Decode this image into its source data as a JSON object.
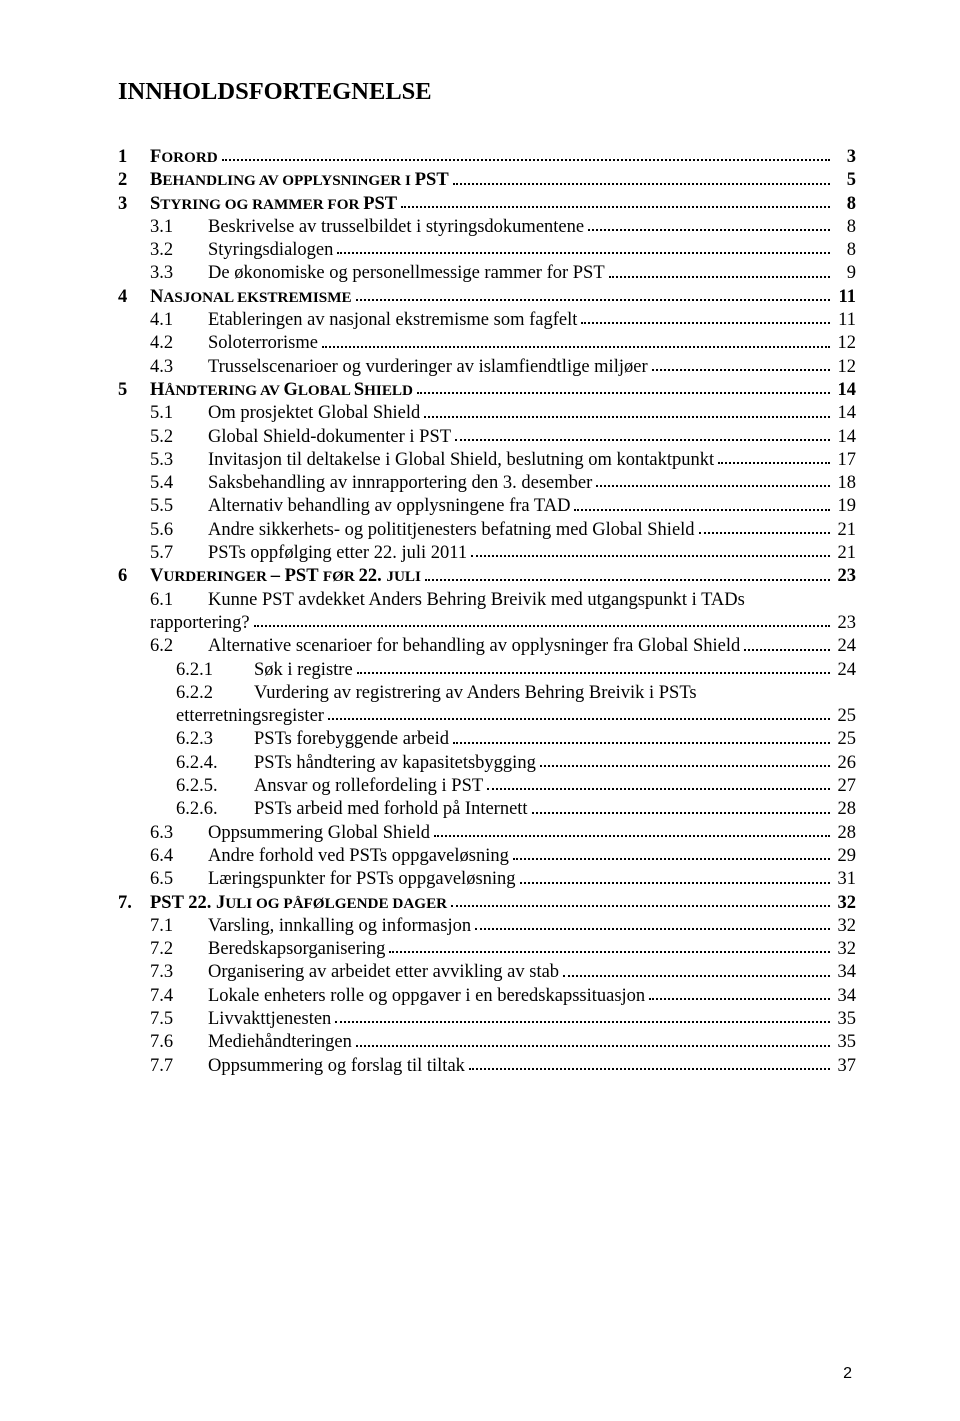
{
  "title": "INNHOLDSFORTEGNELSE",
  "page_number": "2",
  "colors": {
    "text": "#000000",
    "background": "#ffffff"
  },
  "typography": {
    "title_fontsize": 24.5,
    "body_fontsize": 18.5,
    "pagenum_fontsize": 16,
    "line_height": 1.26
  },
  "entries": [
    {
      "level": 1,
      "num": "1",
      "label_pre": "F",
      "label_sc": "ORORD",
      "label_post": "",
      "page": "3"
    },
    {
      "level": 1,
      "num": "2",
      "label_pre": "B",
      "label_sc": "EHANDLING AV OPPLYSNINGER I ",
      "label_post": "PST",
      "page": "5"
    },
    {
      "level": 1,
      "num": "3",
      "label_pre": "S",
      "label_sc": "TYRING OG RAMMER FOR ",
      "label_post": "PST",
      "page": "8"
    },
    {
      "level": 2,
      "num": "3.1",
      "label": "Beskrivelse av trusselbildet i styringsdokumentene",
      "page": "8"
    },
    {
      "level": 2,
      "num": "3.2",
      "label": "Styringsdialogen",
      "page": "8"
    },
    {
      "level": 2,
      "num": "3.3",
      "label": "De økonomiske og personellmessige rammer for PST",
      "page": "9"
    },
    {
      "level": 1,
      "num": "4",
      "label_pre": "N",
      "label_sc": "ASJONAL EKSTREMISME",
      "label_post": "",
      "page": "11"
    },
    {
      "level": 2,
      "num": "4.1",
      "label": "Etableringen av nasjonal ekstremisme som fagfelt",
      "page": "11"
    },
    {
      "level": 2,
      "num": "4.2",
      "label": "Soloterrorisme",
      "page": "12"
    },
    {
      "level": 2,
      "num": "4.3",
      "label": "Trusselscenarioer og vurderinger av islamfiendtlige miljøer",
      "page": "12"
    },
    {
      "level": 1,
      "num": "5",
      "label_pre": "H",
      "label_sc": "ÅNDTERING AV ",
      "label_post": "G",
      "label_sc2": "LOBAL ",
      "label_post2": "S",
      "label_sc3": "HIELD",
      "page": "14"
    },
    {
      "level": 2,
      "num": "5.1",
      "label": "Om prosjektet Global Shield",
      "page": "14"
    },
    {
      "level": 2,
      "num": "5.2",
      "label": "Global Shield-dokumenter i PST",
      "page": "14"
    },
    {
      "level": 2,
      "num": "5.3",
      "label": "Invitasjon til deltakelse i Global Shield, beslutning om kontaktpunkt",
      "page": "17"
    },
    {
      "level": 2,
      "num": "5.4",
      "label": "Saksbehandling av innrapportering den 3. desember",
      "page": "18"
    },
    {
      "level": 2,
      "num": "5.5",
      "label": "Alternativ behandling av opplysningene fra TAD",
      "page": "19"
    },
    {
      "level": 2,
      "num": "5.6",
      "label": "Andre sikkerhets- og polititjenesters befatning med Global Shield",
      "page": "21"
    },
    {
      "level": 2,
      "num": "5.7",
      "label": "PSTs oppfølging etter 22. juli 2011",
      "page": "21"
    },
    {
      "level": 1,
      "num": "6",
      "label_pre": "V",
      "label_sc": "URDERINGER ",
      "label_post": "– PST ",
      "label_sc2": "FØR ",
      "label_post2": "22. ",
      "label_sc3": "JULI",
      "page": "23"
    },
    {
      "level": 2,
      "num": "6.1",
      "label_line1": "Kunne PST avdekket Anders Behring Breivik med utgangspunkt i TADs",
      "label_line2": "rapportering?",
      "page": "23",
      "wrap": true
    },
    {
      "level": 2,
      "num": "6.2",
      "label": "Alternative scenarioer for behandling av opplysninger fra Global Shield",
      "page": "24"
    },
    {
      "level": 3,
      "num": "6.2.1",
      "label": "Søk i registre",
      "page": "24"
    },
    {
      "level": 3,
      "num": "6.2.2",
      "label_line1": "Vurdering av registrering av Anders Behring Breivik i PSTs",
      "label_line2": "etterretningsregister",
      "page": "25",
      "wrap": true
    },
    {
      "level": 3,
      "num": "6.2.3",
      "label": "PSTs forebyggende arbeid",
      "page": "25"
    },
    {
      "level": 3,
      "num": "6.2.4.",
      "label": "PSTs håndtering av kapasitetsbygging",
      "page": "26"
    },
    {
      "level": 3,
      "num": "6.2.5.",
      "label": "Ansvar og rollefordeling i PST",
      "page": "27"
    },
    {
      "level": 3,
      "num": "6.2.6.",
      "label": "PSTs arbeid med forhold på Internett",
      "page": "28"
    },
    {
      "level": 2,
      "num": "6.3",
      "label": "Oppsummering Global Shield",
      "page": "28"
    },
    {
      "level": 2,
      "num": "6.4",
      "label": "Andre forhold ved PSTs oppgaveløsning",
      "page": "29"
    },
    {
      "level": 2,
      "num": "6.5",
      "label": "Læringspunkter for PSTs oppgaveløsning",
      "page": "31"
    },
    {
      "level": 7,
      "num": "7.",
      "label_pre": "PST 22. J",
      "label_sc": "ULI OG PÅFØLGENDE DAGER",
      "label_post": "",
      "page": "32"
    },
    {
      "level": 2,
      "num": "7.1",
      "label": "Varsling, innkalling og informasjon",
      "page": "32"
    },
    {
      "level": 2,
      "num": "7.2",
      "label": "Beredskapsorganisering",
      "page": "32"
    },
    {
      "level": 2,
      "num": "7.3",
      "label": "Organisering av arbeidet etter avvikling av stab",
      "page": "34"
    },
    {
      "level": 2,
      "num": "7.4",
      "label": "Lokale enheters rolle og oppgaver i en beredskapssituasjon",
      "page": "34"
    },
    {
      "level": 2,
      "num": "7.5",
      "label": "Livvakttjenesten",
      "page": "35"
    },
    {
      "level": 2,
      "num": "7.6",
      "label": "Mediehåndteringen",
      "page": "35"
    },
    {
      "level": 2,
      "num": "7.7",
      "label": "Oppsummering og forslag til tiltak",
      "page": "37"
    }
  ]
}
